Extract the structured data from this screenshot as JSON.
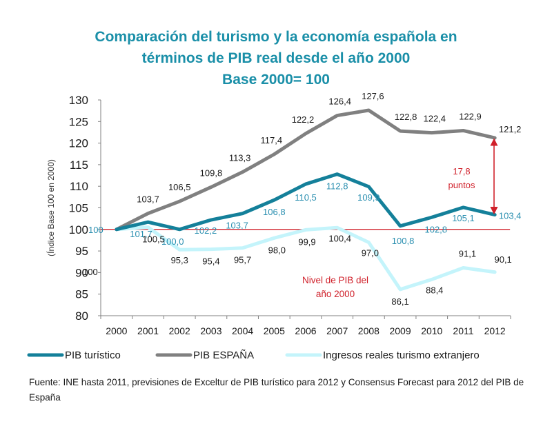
{
  "chart_data": {
    "type": "line",
    "title": "Comparación del turismo y la economía española en",
    "title_line2": "términos de PIB real desde el año 2000",
    "subtitle": "Base 2000= 100",
    "ylabel": "(Índice Base 100 en 2000)",
    "xlabel": "",
    "ylim": [
      80,
      130
    ],
    "yticks": [
      "80",
      "85",
      "90",
      "95",
      "100",
      "105",
      "110",
      "115",
      "120",
      "125",
      "130"
    ],
    "x": [
      "2000",
      "2001",
      "2002",
      "2003",
      "2004",
      "2005",
      "2006",
      "2007",
      "2008",
      "2009",
      "2010",
      "2011",
      "2012"
    ],
    "grid": false,
    "legend_position": "bottom",
    "baseline": {
      "value": 100,
      "label": "100",
      "color": "#d0202a"
    },
    "series": [
      {
        "name": "PIB turístico",
        "color": "#14809a",
        "values": [
          100,
          101.7,
          100.0,
          102.2,
          103.7,
          106.8,
          110.5,
          112.8,
          109.9,
          100.8,
          102.8,
          105.1,
          103.4
        ],
        "labels": [
          "100",
          "101,7",
          "100,0",
          "102,2",
          "103,7",
          "106,8",
          "110,5",
          "112,8",
          "109,9",
          "100,8",
          "102,8",
          "105,1",
          "103,4"
        ]
      },
      {
        "name": "PIB ESPAÑA",
        "color": "#808080",
        "values": [
          100,
          103.7,
          106.5,
          109.8,
          113.3,
          117.4,
          122.2,
          126.4,
          127.6,
          122.8,
          122.4,
          122.9,
          121.2
        ],
        "labels": [
          "100",
          "103,7",
          "106,5",
          "109,8",
          "113,3",
          "117,4",
          "122,2",
          "126,4",
          "127,6",
          "122,8",
          "122,4",
          "122,9",
          "121,2"
        ]
      },
      {
        "name": "Ingresos reales turismo extranjero",
        "color": "#c4f4fb",
        "values": [
          100,
          100.5,
          95.3,
          95.4,
          95.7,
          98.0,
          99.9,
          100.4,
          97.0,
          86.1,
          88.4,
          91.1,
          90.1
        ],
        "labels": [
          "100",
          "100,5",
          "95,3",
          "95,4",
          "95,7",
          "98,0",
          "99,9",
          "100,4",
          "97,0",
          "86,1",
          "88,4",
          "91,1",
          "90,1"
        ]
      }
    ],
    "annotations": {
      "gap_value": "17,8",
      "gap_unit": "puntos",
      "baseline_note_line1": "Nivel de PIB del",
      "baseline_note_line2": "año 2000",
      "annotation_color": "#d0202a"
    }
  },
  "source_text": "Fuente:  INE hasta 2011, previsiones de Exceltur de PIB turístico para  2012 y Consensus  Forecast para 2012 del PIB de España"
}
